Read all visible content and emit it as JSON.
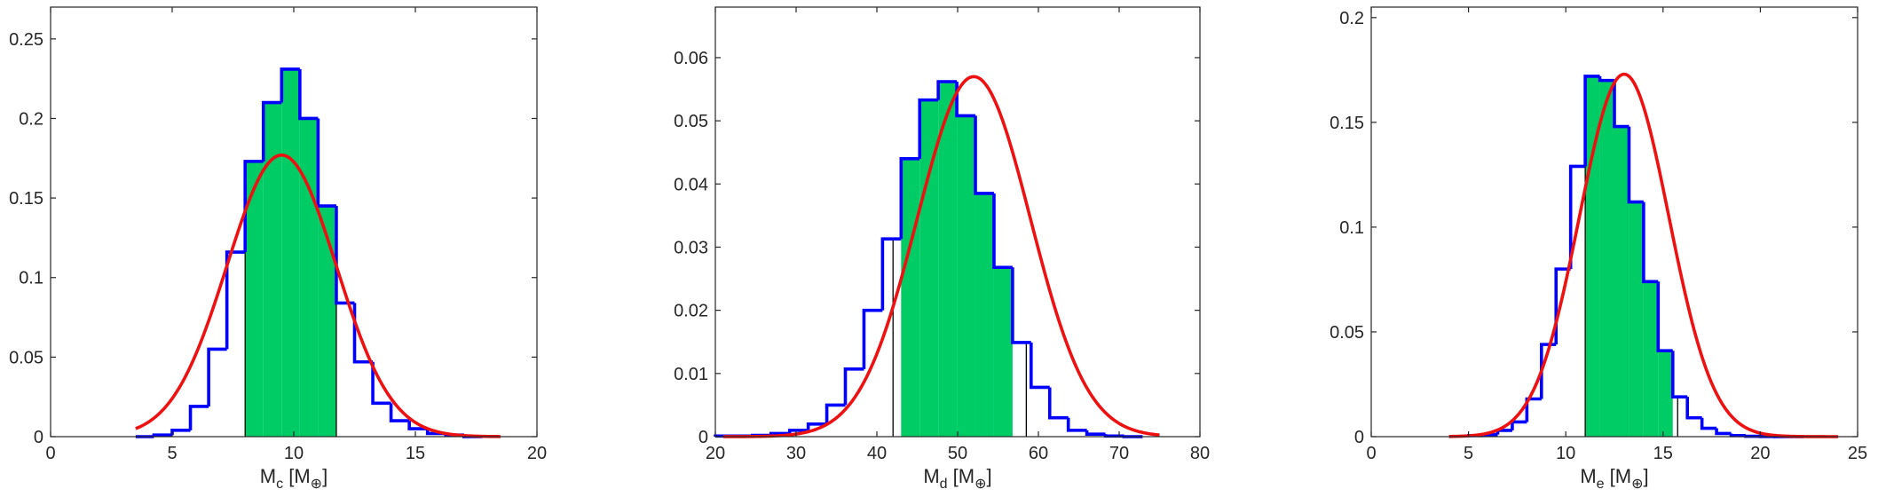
{
  "colors": {
    "histogram_outline": "#0000ff",
    "highlight_fill": "#00cc66",
    "fit_curve": "#ee1111",
    "axes": "#262626"
  },
  "chart_data": [
    {
      "type": "bar",
      "subtype": "histogram-with-gaussian-fit",
      "xlabel": "M_c [M_⊕]",
      "xlabel_main": "M",
      "xlabel_sub": "c",
      "xlabel_unit_open": " [M",
      "xlabel_unit_sub": "⊕",
      "xlabel_unit_close": "]",
      "xlim": [
        0,
        20
      ],
      "ylim": [
        0,
        0.27
      ],
      "xticks": [
        0,
        5,
        10,
        15,
        20
      ],
      "xtick_labels": [
        "0",
        "5",
        "10",
        "15",
        "20"
      ],
      "yticks": [
        0,
        0.05,
        0.1,
        0.15,
        0.2,
        0.25
      ],
      "ytick_labels": [
        "0",
        "0.05",
        "0.1",
        "0.15",
        "0.2",
        "0.25"
      ],
      "bin_edges": [
        3.5,
        4.25,
        5.0,
        5.75,
        6.5,
        7.25,
        8.0,
        8.75,
        9.5,
        10.25,
        11.0,
        11.75,
        12.5,
        13.25,
        14.0,
        14.75,
        15.5,
        16.25,
        17.0,
        17.75
      ],
      "values": [
        0.0,
        0.001,
        0.004,
        0.019,
        0.055,
        0.116,
        0.173,
        0.21,
        0.231,
        0.2,
        0.145,
        0.084,
        0.047,
        0.021,
        0.01,
        0.005,
        0.002,
        0.001,
        0.0
      ],
      "highlight_range": [
        8.0,
        11.75
      ],
      "fit": {
        "type": "gaussian",
        "mean": 9.5,
        "sigma": 2.25,
        "peak": 0.177,
        "x_range": [
          3.5,
          18.5
        ]
      },
      "grid": false
    },
    {
      "type": "bar",
      "subtype": "histogram-with-gaussian-fit",
      "xlabel": "M_d [M_⊕]",
      "xlabel_main": "M",
      "xlabel_sub": "d",
      "xlabel_unit_open": " [M",
      "xlabel_unit_sub": "⊕",
      "xlabel_unit_close": "]",
      "xlim": [
        20,
        80
      ],
      "ylim": [
        0,
        0.068
      ],
      "xticks": [
        20,
        30,
        40,
        50,
        60,
        70,
        80
      ],
      "xtick_labels": [
        "20",
        "30",
        "40",
        "50",
        "60",
        "70",
        "80"
      ],
      "yticks": [
        0,
        0.01,
        0.02,
        0.03,
        0.04,
        0.05,
        0.06
      ],
      "ytick_labels": [
        "0",
        "0.01",
        "0.02",
        "0.03",
        "0.04",
        "0.05",
        "0.06"
      ],
      "bin_edges": [
        20.0,
        22.3,
        24.6,
        26.9,
        29.2,
        31.5,
        33.8,
        36.1,
        38.4,
        40.7,
        43.0,
        45.3,
        47.6,
        49.9,
        52.2,
        54.5,
        56.8,
        59.1,
        61.4,
        63.7,
        66.0,
        68.3,
        70.6,
        72.9
      ],
      "values": [
        0.0001,
        0.0001,
        0.0002,
        0.0005,
        0.001,
        0.002,
        0.005,
        0.0107,
        0.02,
        0.0313,
        0.044,
        0.0533,
        0.0562,
        0.0508,
        0.0385,
        0.0268,
        0.0149,
        0.0078,
        0.003,
        0.001,
        0.0004,
        0.0001,
        0.0
      ],
      "highlight_range": [
        42.0,
        58.5
      ],
      "fit": {
        "type": "gaussian",
        "mean": 52.0,
        "sigma": 7.0,
        "peak": 0.057,
        "x_range": [
          21.0,
          75.0
        ]
      },
      "grid": false
    },
    {
      "type": "bar",
      "subtype": "histogram-with-gaussian-fit",
      "xlabel": "M_e [M_⊕]",
      "xlabel_main": "M",
      "xlabel_sub": "e",
      "xlabel_unit_open": " [M",
      "xlabel_unit_sub": "⊕",
      "xlabel_unit_close": "]",
      "xlim": [
        0,
        25
      ],
      "ylim": [
        0,
        0.205
      ],
      "xticks": [
        0,
        5,
        10,
        15,
        20,
        25
      ],
      "xtick_labels": [
        "0",
        "5",
        "10",
        "15",
        "20",
        "25"
      ],
      "yticks": [
        0,
        0.05,
        0.1,
        0.15,
        0.2
      ],
      "ytick_labels": [
        "0",
        "0.05",
        "0.1",
        "0.15",
        "0.2"
      ],
      "bin_edges": [
        5.0,
        5.75,
        6.5,
        7.25,
        8.0,
        8.75,
        9.5,
        10.25,
        11.0,
        11.75,
        12.5,
        13.25,
        14.0,
        14.75,
        15.5,
        16.25,
        17.0,
        17.75,
        18.5,
        19.25,
        20.0,
        20.75,
        21.5,
        22.25
      ],
      "values": [
        0.0005,
        0.001,
        0.003,
        0.007,
        0.018,
        0.044,
        0.08,
        0.129,
        0.172,
        0.17,
        0.148,
        0.112,
        0.074,
        0.041,
        0.019,
        0.009,
        0.004,
        0.0015,
        0.0005,
        0.0002,
        0.0001,
        0.0,
        0.0
      ],
      "highlight_range": [
        11.0,
        15.75
      ],
      "fit": {
        "type": "gaussian",
        "mean": 13.0,
        "sigma": 2.3,
        "peak": 0.173,
        "x_range": [
          4.0,
          24.0
        ]
      },
      "grid": false
    }
  ]
}
